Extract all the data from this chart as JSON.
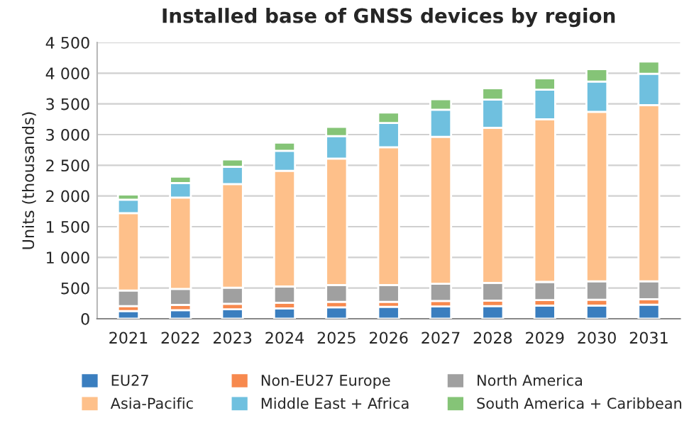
{
  "chart_data": {
    "type": "bar",
    "title": "Installed base of GNSS devices by region",
    "ylabel": "Units (thousands)",
    "categories": [
      "2021",
      "2022",
      "2023",
      "2024",
      "2025",
      "2026",
      "2027",
      "2028",
      "2029",
      "2030",
      "2031"
    ],
    "stacked": true,
    "series": [
      {
        "name": "EU27",
        "color": "#3a7ebf",
        "values": [
          125,
          140,
          155,
          170,
          185,
          195,
          200,
          205,
          215,
          215,
          230
        ]
      },
      {
        "name": "Non-EU27 Europe",
        "color": "#f7894e",
        "values": [
          80,
          85,
          90,
          90,
          90,
          80,
          90,
          90,
          90,
          95,
          90
        ]
      },
      {
        "name": "North America",
        "color": "#a0a0a0",
        "values": [
          255,
          260,
          260,
          265,
          275,
          275,
          280,
          290,
          295,
          300,
          290
        ]
      },
      {
        "name": "Asia-Pacific",
        "color": "#fec08a",
        "values": [
          1260,
          1490,
          1690,
          1885,
          2060,
          2245,
          2395,
          2525,
          2650,
          2760,
          2870
        ]
      },
      {
        "name": "Middle East + Africa",
        "color": "#6fc0df",
        "values": [
          220,
          235,
          280,
          325,
          365,
          395,
          440,
          460,
          480,
          495,
          510
        ]
      },
      {
        "name": "South America + Caribbean",
        "color": "#85c477",
        "values": [
          85,
          105,
          120,
          135,
          150,
          170,
          170,
          185,
          185,
          200,
          200
        ]
      }
    ],
    "ylim": [
      0,
      4500
    ],
    "yticks": [
      {
        "value": 0,
        "label": "0"
      },
      {
        "value": 500,
        "label": "500"
      },
      {
        "value": 1000,
        "label": "1 000"
      },
      {
        "value": 1500,
        "label": "1 500"
      },
      {
        "value": 2000,
        "label": "2 000"
      },
      {
        "value": 2500,
        "label": "2 500"
      },
      {
        "value": 3000,
        "label": "3 000"
      },
      {
        "value": 3500,
        "label": "3 500"
      },
      {
        "value": 4000,
        "label": "4 000"
      },
      {
        "value": 4500,
        "label": "4 500"
      }
    ],
    "grid": "y",
    "legend": "bottom"
  }
}
